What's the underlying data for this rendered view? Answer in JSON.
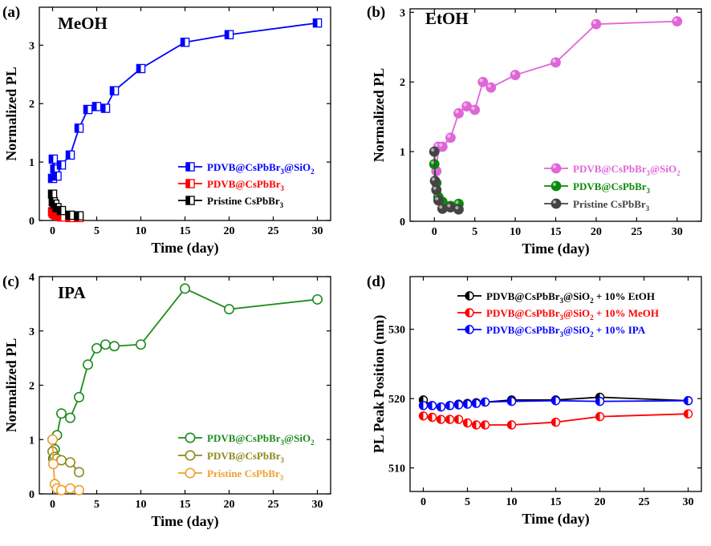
{
  "chart_data": [
    {
      "type": "line",
      "panel_label": "(a)",
      "solvent_label": "MeOH",
      "xlabel": "Time (day)",
      "ylabel": "Normalized PL",
      "xlim": [
        -1.5,
        31.5
      ],
      "ylim": [
        0,
        3.65
      ],
      "xticks": [
        0,
        5,
        10,
        15,
        20,
        25,
        30
      ],
      "yticks": [
        0,
        1,
        2,
        3
      ],
      "grid": false,
      "legend_position": "bottom-right",
      "marker": "half-square",
      "series": [
        {
          "name": "PDVB@CsPbBr3@SiO2",
          "legend_main": "PDVB@CsPbBr",
          "legend_tail": "@SiO",
          "legend_sub1": "3",
          "legend_sub2": "2",
          "color": "#0000ff",
          "x": [
            0,
            0.08,
            0.25,
            0.5,
            1,
            2,
            3,
            4,
            5,
            6,
            7,
            10,
            15,
            20,
            30
          ],
          "y": [
            0.72,
            1.05,
            0.88,
            0.76,
            0.95,
            1.12,
            1.58,
            1.9,
            1.95,
            1.92,
            2.22,
            2.6,
            3.05,
            3.18,
            3.38
          ]
        },
        {
          "name": "PDVB@CsPbBr3",
          "legend_main": "PDVB@CsPbBr",
          "legend_tail": "",
          "legend_sub1": "3",
          "legend_sub2": "",
          "color": "#ff0000",
          "x": [
            0,
            0.08,
            0.25,
            0.5,
            1,
            2,
            3
          ],
          "y": [
            0.15,
            0.12,
            0.1,
            0.08,
            0.06,
            0.05,
            0.05
          ]
        },
        {
          "name": "Pristine CsPbBr3",
          "legend_main": "Pristine CsPbBr",
          "legend_tail": "",
          "legend_sub1": "3",
          "legend_sub2": "",
          "color": "#000000",
          "x": [
            0,
            0.08,
            0.25,
            0.5,
            1,
            2,
            3
          ],
          "y": [
            0.45,
            0.32,
            0.28,
            0.22,
            0.17,
            0.09,
            0.08
          ]
        }
      ]
    },
    {
      "type": "line",
      "panel_label": "(b)",
      "solvent_label": "EtOH",
      "xlabel": "Time (day)",
      "ylabel": "Normalized PL",
      "xlim": [
        -3,
        33
      ],
      "ylim": [
        0,
        3.05
      ],
      "xticks": [
        0,
        5,
        10,
        15,
        20,
        25,
        30
      ],
      "yticks": [
        0,
        1,
        2,
        3
      ],
      "grid": false,
      "legend_position": "bottom-right",
      "marker": "ball",
      "series": [
        {
          "name": "PDVB@CsPbBr3@SiO2",
          "legend_main": "PDVB@CsPbBr",
          "legend_tail": "@SiO",
          "legend_sub1": "3",
          "legend_sub2": "2",
          "color": "#e066d8",
          "x": [
            0,
            0.25,
            0.5,
            1,
            2,
            3,
            4,
            5,
            6,
            7,
            10,
            15,
            20,
            30
          ],
          "y": [
            1.0,
            0.72,
            1.07,
            1.07,
            1.2,
            1.55,
            1.65,
            1.6,
            2.0,
            1.92,
            2.1,
            2.28,
            2.83,
            2.87
          ]
        },
        {
          "name": "PDVB@CsPbBr3",
          "legend_main": "PDVB@CsPbBr",
          "legend_tail": "",
          "legend_sub1": "3",
          "legend_sub2": "",
          "color": "#0a8a0a",
          "x": [
            0,
            0.25,
            0.5,
            1,
            2,
            3
          ],
          "y": [
            0.82,
            0.55,
            0.35,
            0.28,
            0.22,
            0.25
          ]
        },
        {
          "name": "Pristine CsPbBr3",
          "legend_main": "Pristine CsPbBr",
          "legend_tail": "",
          "legend_sub1": "3",
          "legend_sub2": "",
          "color": "#444444",
          "x": [
            0,
            0.08,
            0.25,
            0.5,
            1,
            2,
            3
          ],
          "y": [
            1.0,
            0.58,
            0.45,
            0.3,
            0.18,
            0.2,
            0.17
          ]
        }
      ]
    },
    {
      "type": "line",
      "panel_label": "(c)",
      "solvent_label": "IPA",
      "xlabel": "Time (day)",
      "ylabel": "Normalized PL",
      "xlim": [
        -1.5,
        31.5
      ],
      "ylim": [
        0,
        4.0
      ],
      "xticks": [
        0,
        5,
        10,
        15,
        20,
        25,
        30
      ],
      "yticks": [
        0,
        1,
        2,
        3,
        4
      ],
      "grid": false,
      "legend_position": "bottom-right",
      "marker": "open-circle",
      "series": [
        {
          "name": "PDVB@CsPbBr3@SiO2",
          "legend_main": "PDVB@CsPbBr",
          "legend_tail": "@SiO",
          "legend_sub1": "3",
          "legend_sub2": "2",
          "color": "#1e8c1e",
          "x": [
            0,
            0.08,
            0.25,
            0.5,
            1,
            2,
            3,
            4,
            5,
            6,
            7,
            10,
            15,
            20,
            30
          ],
          "y": [
            1.0,
            0.65,
            0.82,
            1.08,
            1.48,
            1.4,
            1.78,
            2.38,
            2.68,
            2.75,
            2.72,
            2.75,
            3.78,
            3.4,
            3.58
          ]
        },
        {
          "name": "PDVB@CsPbBr3",
          "legend_main": "PDVB@CsPbBr",
          "legend_tail": "",
          "legend_sub1": "3",
          "legend_sub2": "",
          "color": "#8b8b1e",
          "x": [
            0,
            0.25,
            0.5,
            1,
            2,
            3
          ],
          "y": [
            0.78,
            0.68,
            0.65,
            0.62,
            0.58,
            0.4
          ]
        },
        {
          "name": "Pristine CsPbBr3",
          "legend_main": "Pristine CsPbBr",
          "legend_tail": "",
          "legend_sub1": "3",
          "legend_sub2": "",
          "color": "#f0a030",
          "x": [
            0,
            0.08,
            0.25,
            0.5,
            1,
            2,
            3
          ],
          "y": [
            1.0,
            0.55,
            0.18,
            0.1,
            0.07,
            0.1,
            0.07
          ]
        }
      ]
    },
    {
      "type": "line",
      "panel_label": "(d)",
      "xlabel": "Time (day)",
      "ylabel": "PL Peak Position (nm)",
      "xlim": [
        -1.5,
        31.5
      ],
      "ylim": [
        506.6,
        537.6
      ],
      "xticks": [
        0,
        5,
        10,
        15,
        20,
        25,
        30
      ],
      "yticks": [
        510,
        520,
        530
      ],
      "grid": false,
      "legend_position": "top-right",
      "marker": "half-circle",
      "series": [
        {
          "name": "PDVB@CsPbBr3@SiO2 + 10% EtOH",
          "legend_main": "PDVB@CsPbBr",
          "legend_tail": "@SiO",
          "legend_sub1": "3",
          "legend_sub2": "2",
          "legend_suffix": " + 10% EtOH",
          "color": "#000000",
          "x": [
            0,
            1,
            2,
            3,
            4,
            5,
            6,
            7,
            10,
            15,
            20,
            30
          ],
          "y": [
            519.8,
            519.0,
            518.8,
            519.0,
            519.2,
            519.3,
            519.4,
            519.5,
            519.8,
            519.8,
            520.2,
            519.7
          ]
        },
        {
          "name": "PDVB@CsPbBr3@SiO2 + 10% MeOH",
          "legend_main": "PDVB@CsPbBr",
          "legend_tail": "@SiO",
          "legend_sub1": "3",
          "legend_sub2": "2",
          "legend_suffix": " + 10% MeOH",
          "color": "#ff0000",
          "x": [
            0,
            1,
            2,
            3,
            4,
            5,
            6,
            7,
            10,
            15,
            20,
            30
          ],
          "y": [
            517.5,
            517.3,
            517.0,
            517.0,
            517.0,
            516.5,
            516.2,
            516.2,
            516.2,
            516.6,
            517.4,
            517.8
          ]
        },
        {
          "name": "PDVB@CsPbBr3@SiO2 + 10% IPA",
          "legend_main": "PDVB@CsPbBr",
          "legend_tail": "@SiO",
          "legend_sub1": "3",
          "legend_sub2": "2",
          "legend_suffix": " + 10% IPA",
          "color": "#0000ff",
          "x": [
            0,
            1,
            2,
            3,
            4,
            5,
            6,
            7,
            10,
            15,
            20,
            30
          ],
          "y": [
            519.0,
            519.0,
            518.8,
            519.0,
            519.1,
            519.2,
            519.3,
            519.5,
            519.6,
            519.7,
            519.6,
            519.7
          ]
        }
      ]
    }
  ]
}
